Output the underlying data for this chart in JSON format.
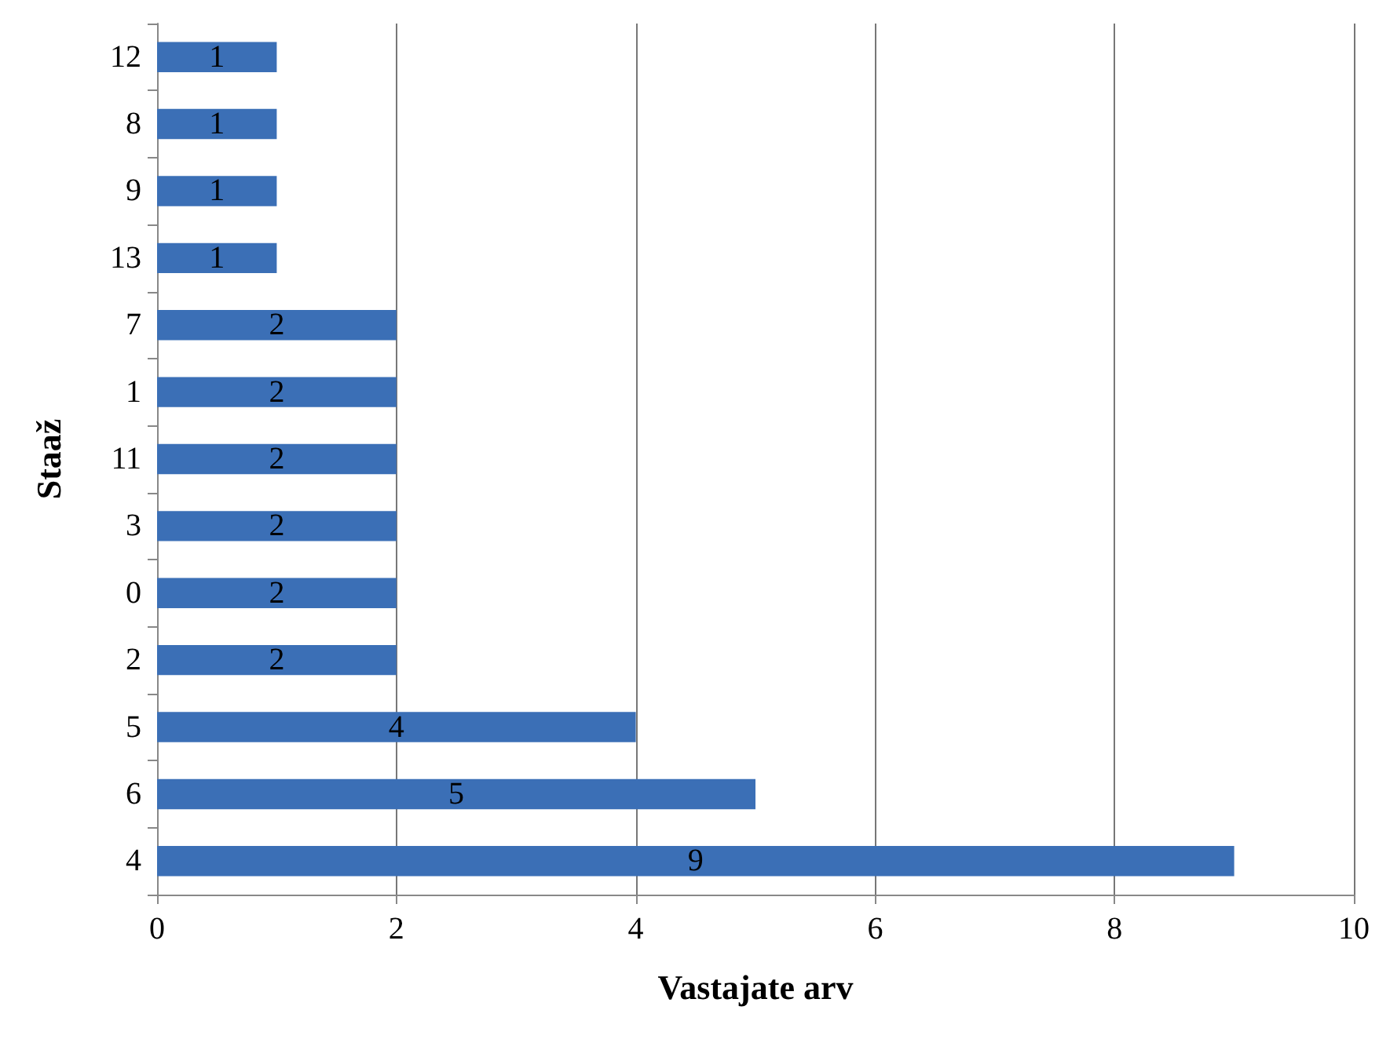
{
  "chart_data": {
    "type": "bar",
    "orientation": "horizontal",
    "xlabel": "Vastajate arv",
    "ylabel": "Staaž",
    "categories": [
      "12",
      "8",
      "9",
      "13",
      "7",
      "1",
      "11",
      "3",
      "0",
      "2",
      "5",
      "6",
      "4"
    ],
    "values": [
      1,
      1,
      1,
      1,
      2,
      2,
      2,
      2,
      2,
      2,
      4,
      5,
      9
    ],
    "color": "#3b6fb6",
    "xlim": [
      0,
      10
    ],
    "xticks": [
      0,
      2,
      4,
      6,
      8,
      10
    ],
    "grid": "x",
    "data_labels": true
  }
}
